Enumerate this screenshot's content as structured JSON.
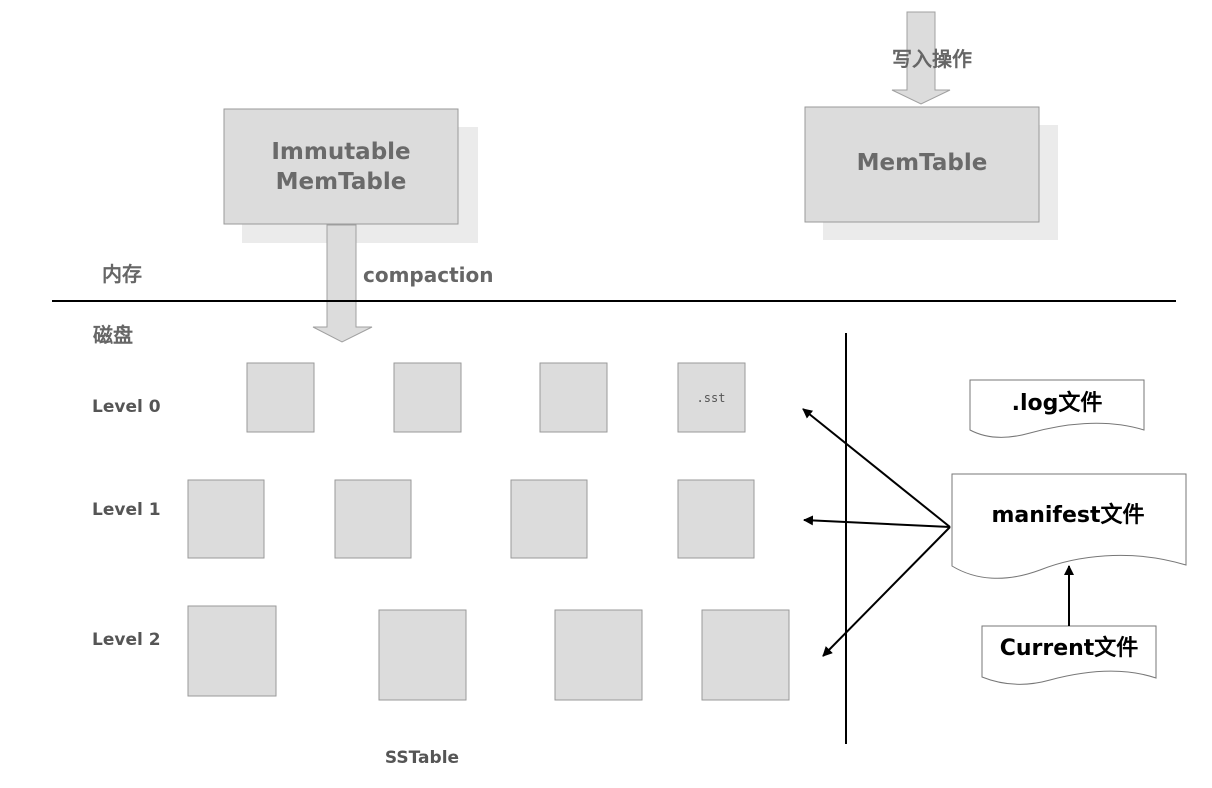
{
  "top": {
    "write_op": "写入操作",
    "immutable_line1": "Immutable",
    "immutable_line2": "MemTable",
    "memtable": "MemTable",
    "compaction": "compaction"
  },
  "regions": {
    "memory": "内存",
    "disk": "磁盘"
  },
  "levels": [
    {
      "label": "Level 0"
    },
    {
      "label": "Level 1"
    },
    {
      "label": "Level 2"
    }
  ],
  "sst_label": ".sst",
  "sstable_label": "SSTable",
  "files": {
    "log": ".log文件",
    "manifest": "manifest文件",
    "current": "Current文件"
  }
}
